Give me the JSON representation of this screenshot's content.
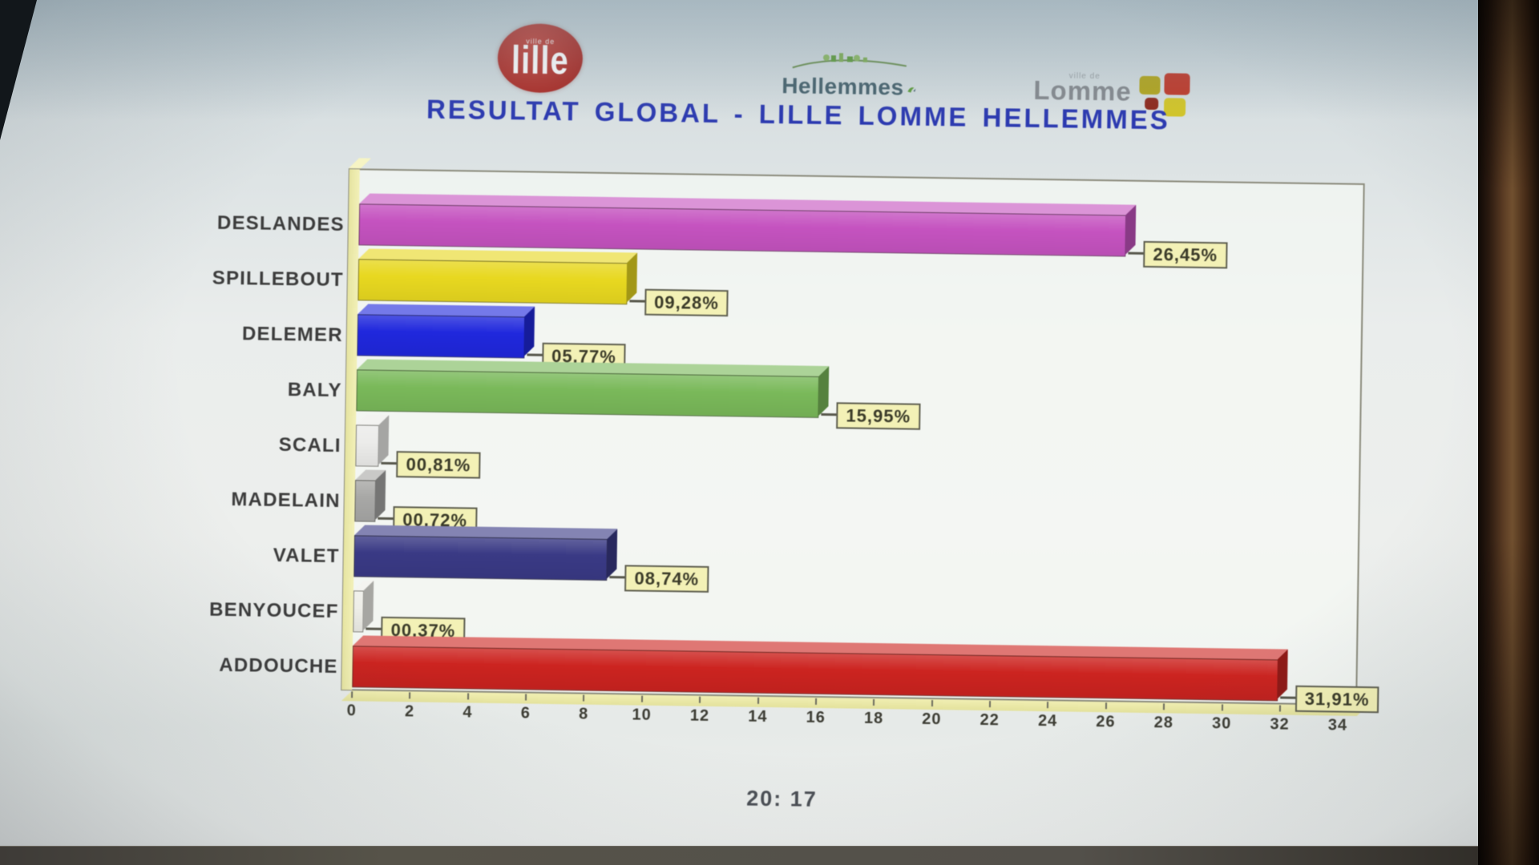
{
  "title": "RESULTAT GLOBAL - LILLE LOMME HELLEMMES",
  "meta": {
    "time": "20: 17"
  },
  "logos": {
    "lille": {
      "subtext": "ville de",
      "text": "lille",
      "bg": "#ab2d27"
    },
    "hellemmes": {
      "text": "Hellemmes",
      "color": "#47626d",
      "accent": "#5f9c3d"
    },
    "lomme": {
      "subtext": "ville de",
      "text": "Lomme",
      "color": "#85898e",
      "squares": [
        "#b2a51f",
        "#bf3a2b",
        "#8e2a1e",
        "#d2c52a"
      ]
    }
  },
  "chart_data": {
    "type": "bar",
    "orientation": "horizontal",
    "style": "3d-bars-with-value-boxes",
    "title": "RESULTAT GLOBAL - LILLE LOMME HELLEMMES",
    "categories": [
      "DESLANDES",
      "SPILLEBOUT",
      "DELEMER",
      "BALY",
      "SCALI",
      "MADELAIN",
      "VALET",
      "BENYOUCEF",
      "ADDOUCHE"
    ],
    "values": [
      26.45,
      9.28,
      5.77,
      15.95,
      0.81,
      0.72,
      8.74,
      0.37,
      31.91
    ],
    "value_labels": [
      "26,45%",
      "09,28%",
      "05,77%",
      "15,95%",
      "00,81%",
      "00,72%",
      "08,74%",
      "00,37%",
      "31,91%"
    ],
    "colors": [
      "#c553c0",
      "#e8d820",
      "#2028dd",
      "#7ab95a",
      "#ececea",
      "#a8a8a6",
      "#3a3a85",
      "#eeeee8",
      "#cc2420"
    ],
    "xlabel": "",
    "ylabel": "",
    "xlim": [
      0,
      34.6
    ],
    "x_ticks": [
      "0",
      "2",
      "4",
      "6",
      "8",
      "10",
      "12",
      "14",
      "16",
      "18",
      "20",
      "22",
      "24",
      "26",
      "28",
      "30",
      "32",
      "34"
    ],
    "grid": false,
    "legend": false,
    "value_box_bg": "#f3f1b6",
    "frame_color": "#8b8b7c",
    "wall_floor_color": "#eeecac"
  }
}
